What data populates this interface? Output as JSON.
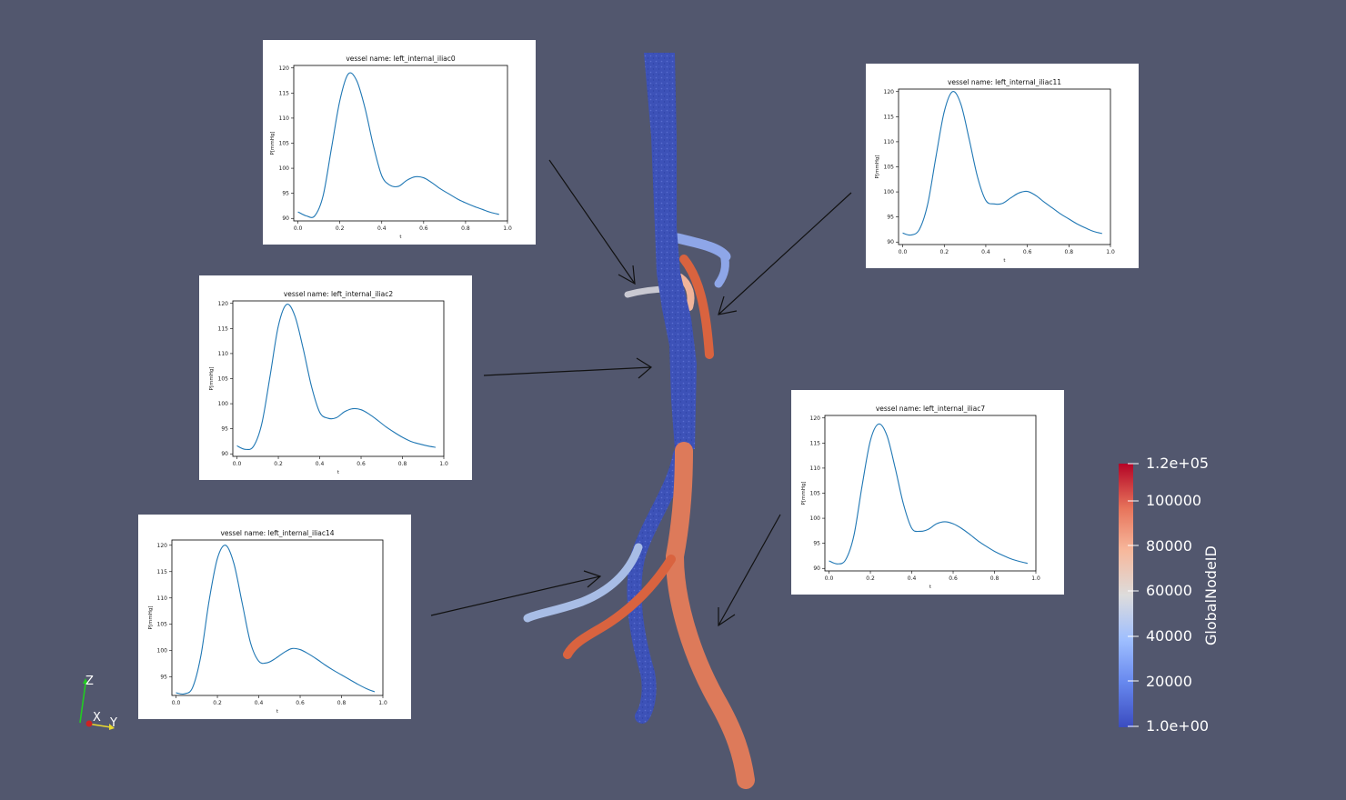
{
  "colorbar": {
    "title": "GlobalNodeID",
    "labels": [
      "1.2e+05",
      "100000",
      "80000",
      "60000",
      "40000",
      "20000",
      "1.0e+00"
    ],
    "colors": [
      "#b40426",
      "#e7745b",
      "#f7b89c",
      "#dddcdc",
      "#9ebeff",
      "#6788ee",
      "#3b4cc0"
    ]
  },
  "orientation_axes": {
    "z": "Z",
    "x": "X",
    "y": "Y"
  },
  "chart_data": [
    {
      "type": "line",
      "title": "vessel name: left_internal_iliac0",
      "xlabel": "t",
      "ylabel": "P[mmHg]",
      "xlim": [
        -0.02,
        1.0
      ],
      "ylim": [
        89.5,
        120.5
      ],
      "xticks": [
        "0.0",
        "0.2",
        "0.4",
        "0.6",
        "0.8",
        "1.0"
      ],
      "yticks": [
        "90",
        "95",
        "100",
        "105",
        "110",
        "115",
        "120"
      ],
      "xtick_values": [
        0,
        0.2,
        0.4,
        0.6,
        0.8,
        1.0
      ],
      "ytick_values": [
        90,
        95,
        100,
        105,
        110,
        115,
        120
      ],
      "series": [
        {
          "x": [
            0.0,
            0.04,
            0.08,
            0.12,
            0.16,
            0.2,
            0.24,
            0.28,
            0.32,
            0.36,
            0.4,
            0.44,
            0.48,
            0.52,
            0.56,
            0.6,
            0.64,
            0.68,
            0.72,
            0.76,
            0.8,
            0.84,
            0.88,
            0.92,
            0.96
          ],
          "y": [
            91.3,
            90.5,
            90.5,
            94.5,
            104.0,
            113.5,
            118.8,
            117.5,
            112.0,
            104.5,
            98.5,
            96.6,
            96.4,
            97.6,
            98.3,
            98.1,
            97.1,
            95.9,
            94.9,
            93.9,
            93.1,
            92.4,
            91.8,
            91.2,
            90.8
          ]
        }
      ]
    },
    {
      "type": "line",
      "title": "vessel name: left_internal_iliac11",
      "xlabel": "t",
      "ylabel": "P[mmHg]",
      "xlim": [
        -0.02,
        1.0
      ],
      "ylim": [
        89.5,
        120.5
      ],
      "xticks": [
        "0.0",
        "0.2",
        "0.4",
        "0.6",
        "0.8",
        "1.0"
      ],
      "yticks": [
        "90",
        "95",
        "100",
        "105",
        "110",
        "115",
        "120"
      ],
      "xtick_values": [
        0,
        0.2,
        0.4,
        0.6,
        0.8,
        1.0
      ],
      "ytick_values": [
        90,
        95,
        100,
        105,
        110,
        115,
        120
      ],
      "series": [
        {
          "x": [
            0.0,
            0.04,
            0.08,
            0.12,
            0.16,
            0.2,
            0.24,
            0.28,
            0.32,
            0.36,
            0.4,
            0.44,
            0.48,
            0.52,
            0.56,
            0.6,
            0.64,
            0.68,
            0.72,
            0.76,
            0.8,
            0.84,
            0.88,
            0.92,
            0.96
          ],
          "y": [
            91.8,
            91.4,
            92.5,
            97.5,
            107.0,
            116.0,
            120.0,
            117.5,
            110.5,
            103.0,
            98.3,
            97.6,
            97.7,
            98.8,
            99.8,
            100.1,
            99.3,
            98.0,
            96.8,
            95.6,
            94.6,
            93.6,
            92.8,
            92.1,
            91.7
          ]
        }
      ]
    },
    {
      "type": "line",
      "title": "vessel name: left_internal_iliac2",
      "xlabel": "t",
      "ylabel": "P[mmHg]",
      "xlim": [
        -0.02,
        1.0
      ],
      "ylim": [
        89.5,
        120.5
      ],
      "xticks": [
        "0.0",
        "0.2",
        "0.4",
        "0.6",
        "0.8",
        "1.0"
      ],
      "yticks": [
        "90",
        "95",
        "100",
        "105",
        "110",
        "115",
        "120"
      ],
      "xtick_values": [
        0,
        0.2,
        0.4,
        0.6,
        0.8,
        1.0
      ],
      "ytick_values": [
        90,
        95,
        100,
        105,
        110,
        115,
        120
      ],
      "series": [
        {
          "x": [
            0.0,
            0.04,
            0.08,
            0.12,
            0.16,
            0.2,
            0.24,
            0.28,
            0.32,
            0.36,
            0.4,
            0.44,
            0.48,
            0.52,
            0.56,
            0.6,
            0.64,
            0.68,
            0.72,
            0.76,
            0.8,
            0.84,
            0.88,
            0.92,
            0.96
          ],
          "y": [
            91.6,
            90.9,
            91.5,
            96.0,
            105.5,
            115.5,
            119.8,
            117.5,
            111.0,
            103.5,
            98.3,
            97.1,
            97.2,
            98.4,
            99.0,
            98.8,
            97.9,
            96.7,
            95.4,
            94.3,
            93.3,
            92.5,
            92.0,
            91.6,
            91.3
          ]
        }
      ]
    },
    {
      "type": "line",
      "title": "vessel name: left_internal_iliac7",
      "xlabel": "t",
      "ylabel": "P[mmHg]",
      "xlim": [
        -0.02,
        1.0
      ],
      "ylim": [
        89.5,
        120.5
      ],
      "xticks": [
        "0.0",
        "0.2",
        "0.4",
        "0.6",
        "0.8",
        "1.0"
      ],
      "yticks": [
        "90",
        "95",
        "100",
        "105",
        "110",
        "115",
        "120"
      ],
      "xtick_values": [
        0,
        0.2,
        0.4,
        0.6,
        0.8,
        1.0
      ],
      "ytick_values": [
        90,
        95,
        100,
        105,
        110,
        115,
        120
      ],
      "series": [
        {
          "x": [
            0.0,
            0.04,
            0.08,
            0.12,
            0.16,
            0.2,
            0.24,
            0.28,
            0.32,
            0.36,
            0.4,
            0.44,
            0.48,
            0.52,
            0.56,
            0.6,
            0.64,
            0.68,
            0.72,
            0.76,
            0.8,
            0.84,
            0.88,
            0.92,
            0.96
          ],
          "y": [
            91.5,
            90.9,
            91.7,
            96.5,
            106.5,
            115.5,
            118.8,
            116.5,
            110.0,
            102.8,
            98.0,
            97.4,
            97.8,
            98.9,
            99.3,
            98.9,
            98.0,
            96.8,
            95.5,
            94.4,
            93.4,
            92.6,
            91.9,
            91.4,
            91.0
          ]
        }
      ]
    },
    {
      "type": "line",
      "title": "vessel name: left_internal_iliac14",
      "xlabel": "t",
      "ylabel": "P[mmHg]",
      "xlim": [
        -0.02,
        1.0
      ],
      "ylim": [
        91.5,
        121.0
      ],
      "xticks": [
        "0.0",
        "0.2",
        "0.4",
        "0.6",
        "0.8",
        "1.0"
      ],
      "yticks": [
        "95",
        "100",
        "105",
        "110",
        "115",
        "120"
      ],
      "xtick_values": [
        0,
        0.2,
        0.4,
        0.6,
        0.8,
        1.0
      ],
      "ytick_values": [
        95,
        100,
        105,
        110,
        115,
        120
      ],
      "series": [
        {
          "x": [
            0.0,
            0.04,
            0.08,
            0.12,
            0.16,
            0.2,
            0.24,
            0.28,
            0.32,
            0.36,
            0.4,
            0.44,
            0.48,
            0.52,
            0.56,
            0.6,
            0.64,
            0.68,
            0.72,
            0.76,
            0.8,
            0.84,
            0.88,
            0.92,
            0.96
          ],
          "y": [
            92.0,
            91.8,
            93.0,
            99.0,
            109.5,
            117.5,
            120.0,
            116.5,
            109.0,
            101.5,
            98.0,
            97.7,
            98.5,
            99.6,
            100.4,
            100.2,
            99.4,
            98.4,
            97.3,
            96.3,
            95.4,
            94.5,
            93.6,
            92.8,
            92.2
          ]
        }
      ]
    }
  ]
}
